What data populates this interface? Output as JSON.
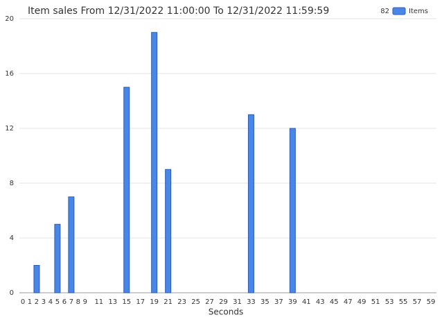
{
  "chart_data": {
    "type": "bar",
    "title": "Item sales From 12/31/2022 11:00:00 To 12/31/2022 11:59:59",
    "x_label": "Seconds",
    "legend_total": "82",
    "series": [
      {
        "name": "Items",
        "color": "#4a86e8",
        "values": [
          0,
          0,
          2,
          0,
          0,
          5,
          0,
          7,
          0,
          0,
          0,
          0,
          0,
          0,
          0,
          15,
          0,
          0,
          0,
          19,
          0,
          9,
          0,
          0,
          0,
          0,
          0,
          0,
          0,
          0,
          0,
          0,
          0,
          13,
          0,
          0,
          0,
          0,
          0,
          12,
          0,
          0,
          0,
          0,
          0,
          0,
          0,
          0,
          0,
          0,
          0,
          0,
          0,
          0,
          0,
          0,
          0,
          0,
          0,
          0
        ]
      }
    ],
    "categories": [
      "0",
      "1",
      "2",
      "3",
      "4",
      "5",
      "6",
      "7",
      "8",
      "9",
      null,
      "11",
      null,
      "13",
      null,
      "15",
      null,
      "17",
      null,
      "19",
      null,
      "21",
      null,
      "23",
      null,
      "25",
      null,
      "27",
      null,
      "29",
      null,
      "31",
      null,
      "33",
      null,
      "35",
      null,
      "37",
      null,
      "39",
      null,
      "41",
      null,
      "43",
      null,
      "45",
      null,
      "47",
      null,
      "49",
      null,
      "51",
      null,
      "53",
      null,
      "55",
      null,
      "57",
      null,
      "59"
    ],
    "ylim": [
      0,
      20
    ],
    "yticks": [
      0,
      4,
      8,
      12,
      16,
      20
    ],
    "grid": true,
    "legend": "top-right"
  }
}
